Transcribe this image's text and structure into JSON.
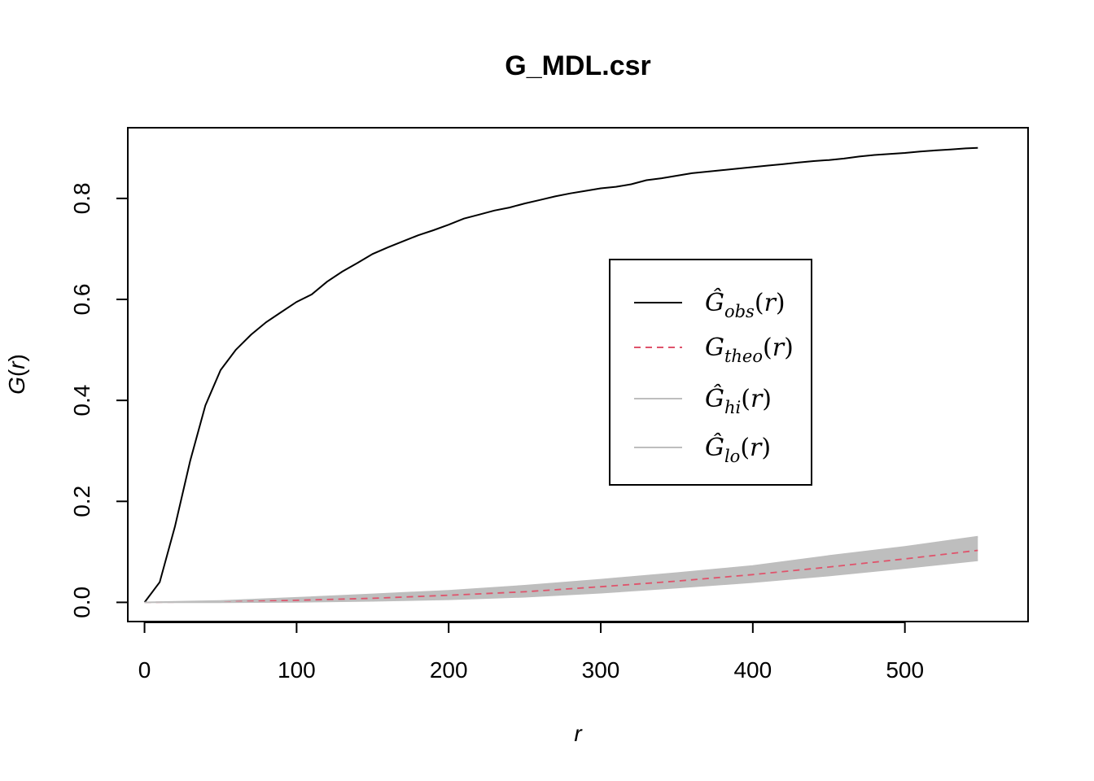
{
  "chart_data": {
    "type": "line",
    "title": "G_MDL.csr",
    "xlabel": "r",
    "ylabel": "G(r)",
    "xlim": [
      -11,
      581
    ],
    "ylim": [
      -0.038,
      0.94
    ],
    "xticks": [
      0,
      100,
      200,
      300,
      400,
      500
    ],
    "xtick_labels": [
      "0",
      "100",
      "200",
      "300",
      "400",
      "500"
    ],
    "yticks": [
      0.0,
      0.2,
      0.4,
      0.6,
      0.8
    ],
    "ytick_labels": [
      "0.0",
      "0.2",
      "0.4",
      "0.6",
      "0.8"
    ],
    "grid": false,
    "legend_position": "center-right",
    "series": [
      {
        "key": "obs",
        "legend": {
          "base": "Ĝ",
          "sub": "obs",
          "arg": "(r)"
        },
        "color": "#000000",
        "style": "solid",
        "x": [
          0,
          10,
          20,
          30,
          40,
          50,
          60,
          70,
          80,
          90,
          100,
          110,
          120,
          130,
          140,
          150,
          160,
          170,
          180,
          190,
          200,
          210,
          220,
          230,
          240,
          250,
          260,
          270,
          280,
          290,
          300,
          310,
          320,
          330,
          340,
          350,
          360,
          370,
          380,
          390,
          400,
          410,
          420,
          430,
          440,
          450,
          460,
          470,
          480,
          490,
          500,
          510,
          520,
          530,
          540,
          548
        ],
        "y": [
          0.0,
          0.04,
          0.15,
          0.28,
          0.39,
          0.46,
          0.5,
          0.53,
          0.555,
          0.575,
          0.595,
          0.61,
          0.635,
          0.655,
          0.672,
          0.69,
          0.703,
          0.715,
          0.727,
          0.737,
          0.748,
          0.76,
          0.768,
          0.776,
          0.782,
          0.79,
          0.797,
          0.804,
          0.81,
          0.815,
          0.82,
          0.823,
          0.828,
          0.836,
          0.84,
          0.845,
          0.85,
          0.853,
          0.856,
          0.859,
          0.862,
          0.865,
          0.868,
          0.871,
          0.874,
          0.876,
          0.879,
          0.883,
          0.886,
          0.888,
          0.89,
          0.893,
          0.895,
          0.897,
          0.899,
          0.9
        ]
      },
      {
        "key": "theo",
        "legend": {
          "base": "G",
          "sub": "theo",
          "arg": "(r)"
        },
        "color": "#DF536B",
        "style": "dashed",
        "x": [
          0,
          50,
          100,
          150,
          200,
          250,
          300,
          350,
          400,
          450,
          500,
          548
        ],
        "y": [
          0.0,
          0.001,
          0.004,
          0.008,
          0.014,
          0.021,
          0.031,
          0.042,
          0.055,
          0.07,
          0.086,
          0.103
        ]
      },
      {
        "key": "hi",
        "legend": {
          "base": "Ĝ",
          "sub": "hi",
          "arg": "(r)"
        },
        "color": "#BEBEBE",
        "style": "solid",
        "x": [
          0,
          50,
          100,
          150,
          200,
          250,
          300,
          350,
          400,
          450,
          500,
          548
        ],
        "y": [
          0.0,
          0.003,
          0.009,
          0.016,
          0.023,
          0.033,
          0.045,
          0.058,
          0.072,
          0.092,
          0.11,
          0.13
        ]
      },
      {
        "key": "lo",
        "legend": {
          "base": "Ĝ",
          "sub": "lo",
          "arg": "(r)"
        },
        "color": "#BEBEBE",
        "style": "solid",
        "x": [
          0,
          50,
          100,
          150,
          200,
          250,
          300,
          350,
          400,
          450,
          500,
          548
        ],
        "y": [
          0.0,
          0.0,
          0.001,
          0.003,
          0.006,
          0.011,
          0.019,
          0.029,
          0.04,
          0.053,
          0.068,
          0.083
        ]
      }
    ]
  }
}
